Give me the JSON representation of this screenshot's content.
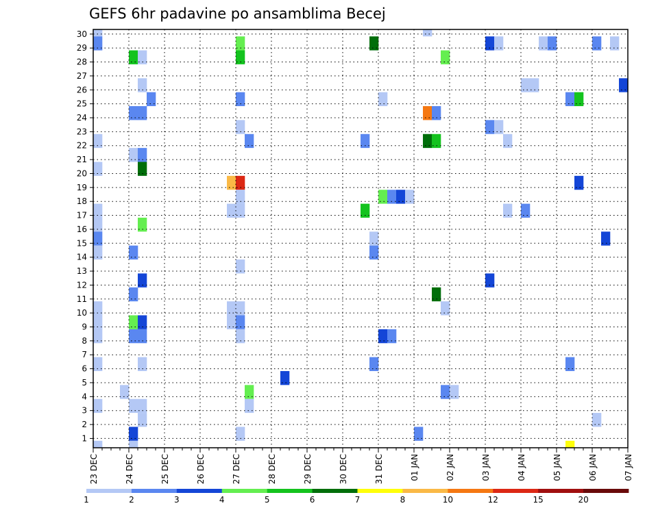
{
  "chart_data": {
    "type": "heatmap",
    "title": "GEFS 6hr padavine po ansamblima Becej",
    "x_ticks": [
      "23 DEC",
      "24 DEC",
      "25 DEC",
      "26 DEC",
      "27 DEC",
      "28 DEC",
      "29 DEC",
      "30 DEC",
      "31 DEC",
      "01 JAN",
      "02 JAN",
      "03 JAN",
      "04 JAN",
      "05 JAN",
      "06 JAN",
      "07 JAN"
    ],
    "y_ticks": [
      1,
      2,
      3,
      4,
      5,
      6,
      7,
      8,
      9,
      10,
      11,
      12,
      13,
      14,
      15,
      16,
      17,
      18,
      19,
      20,
      21,
      22,
      23,
      24,
      25,
      26,
      27,
      28,
      29,
      30
    ],
    "grid": true,
    "colorbar": {
      "levels": [
        "1",
        "2",
        "3",
        "4",
        "5",
        "6",
        "7",
        "8",
        "10",
        "12",
        "15",
        "20"
      ],
      "colors": [
        "#b4c8f5",
        "#5a87f0",
        "#1446d7",
        "#64ee50",
        "#14c31e",
        "#006e0a",
        "#ffff0a",
        "#fab946",
        "#f57812",
        "#dc2814",
        "#a00f0f",
        "#690a0a"
      ]
    },
    "x_unit": "6-hour step from 23 DEC 00Z",
    "y_unit": "ensemble member",
    "cells": [
      {
        "x": 0,
        "y": 29,
        "c": 1
      },
      {
        "x": 0,
        "y": 28,
        "c": 2
      },
      {
        "x": 0,
        "y": 21,
        "c": 1
      },
      {
        "x": 0,
        "y": 19,
        "c": 1
      },
      {
        "x": 0,
        "y": 16,
        "c": 1
      },
      {
        "x": 0,
        "y": 15,
        "c": 1
      },
      {
        "x": 0,
        "y": 14,
        "c": 2
      },
      {
        "x": 0,
        "y": 13,
        "c": 1
      },
      {
        "x": 0,
        "y": 9,
        "c": 1
      },
      {
        "x": 0,
        "y": 8,
        "c": 1
      },
      {
        "x": 0,
        "y": 7,
        "c": 1
      },
      {
        "x": 0,
        "y": 5,
        "c": 1
      },
      {
        "x": 0,
        "y": 2,
        "c": 1
      },
      {
        "x": 0,
        "y": -1,
        "c": 1
      },
      {
        "x": 4,
        "y": 27,
        "c": 5
      },
      {
        "x": 5,
        "y": 27,
        "c": 1
      },
      {
        "x": 4,
        "y": 23,
        "c": 2
      },
      {
        "x": 5,
        "y": 23,
        "c": 2
      },
      {
        "x": 5,
        "y": 25,
        "c": 1
      },
      {
        "x": 6,
        "y": 24,
        "c": 2
      },
      {
        "x": 4,
        "y": 20,
        "c": 1
      },
      {
        "x": 5,
        "y": 20,
        "c": 2
      },
      {
        "x": 5,
        "y": 19,
        "c": 6
      },
      {
        "x": 5,
        "y": 15,
        "c": 4
      },
      {
        "x": 4,
        "y": 13,
        "c": 2
      },
      {
        "x": 5,
        "y": 11,
        "c": 3
      },
      {
        "x": 4,
        "y": 10,
        "c": 2
      },
      {
        "x": 4,
        "y": 8,
        "c": 4
      },
      {
        "x": 5,
        "y": 8,
        "c": 3
      },
      {
        "x": 4,
        "y": 7,
        "c": 2
      },
      {
        "x": 5,
        "y": 7,
        "c": 2
      },
      {
        "x": 5,
        "y": 5,
        "c": 1
      },
      {
        "x": 3,
        "y": 3,
        "c": 1
      },
      {
        "x": 4,
        "y": 2,
        "c": 1
      },
      {
        "x": 5,
        "y": 2,
        "c": 1
      },
      {
        "x": 5,
        "y": 1,
        "c": 1
      },
      {
        "x": 4,
        "y": 0,
        "c": 3
      },
      {
        "x": 4,
        "y": -1,
        "c": 1
      },
      {
        "x": 16,
        "y": 28,
        "c": 4
      },
      {
        "x": 16,
        "y": 27,
        "c": 5
      },
      {
        "x": 16,
        "y": 24,
        "c": 2
      },
      {
        "x": 16,
        "y": 22,
        "c": 1
      },
      {
        "x": 17,
        "y": 21,
        "c": 2
      },
      {
        "x": 15,
        "y": 18,
        "c": 8
      },
      {
        "x": 16,
        "y": 18,
        "c": 10
      },
      {
        "x": 16,
        "y": 17,
        "c": 1
      },
      {
        "x": 15,
        "y": 16,
        "c": 1
      },
      {
        "x": 16,
        "y": 16,
        "c": 1
      },
      {
        "x": 16,
        "y": 12,
        "c": 1
      },
      {
        "x": 15,
        "y": 9,
        "c": 1
      },
      {
        "x": 16,
        "y": 9,
        "c": 1
      },
      {
        "x": 15,
        "y": 8,
        "c": 1
      },
      {
        "x": 16,
        "y": 8,
        "c": 2
      },
      {
        "x": 16,
        "y": 7,
        "c": 1
      },
      {
        "x": 17,
        "y": 3,
        "c": 4
      },
      {
        "x": 17,
        "y": 2,
        "c": 1
      },
      {
        "x": 16,
        "y": 0,
        "c": 1
      },
      {
        "x": 21,
        "y": 4,
        "c": 3
      },
      {
        "x": 31,
        "y": 28,
        "c": 6
      },
      {
        "x": 30,
        "y": 21,
        "c": 2
      },
      {
        "x": 30,
        "y": 16,
        "c": 5
      },
      {
        "x": 31,
        "y": 14,
        "c": 1
      },
      {
        "x": 31,
        "y": 13,
        "c": 2
      },
      {
        "x": 31,
        "y": 5,
        "c": 2
      },
      {
        "x": 32,
        "y": 24,
        "c": 1
      },
      {
        "x": 32,
        "y": 17,
        "c": 4
      },
      {
        "x": 33,
        "y": 17,
        "c": 2
      },
      {
        "x": 34,
        "y": 17,
        "c": 3
      },
      {
        "x": 35,
        "y": 17,
        "c": 1
      },
      {
        "x": 32,
        "y": 7,
        "c": 3
      },
      {
        "x": 33,
        "y": 7,
        "c": 2
      },
      {
        "x": 36,
        "y": 0,
        "c": 2
      },
      {
        "x": 37,
        "y": 29,
        "c": 1
      },
      {
        "x": 37,
        "y": 23,
        "c": 9
      },
      {
        "x": 38,
        "y": 23,
        "c": 2
      },
      {
        "x": 37,
        "y": 21,
        "c": 6
      },
      {
        "x": 38,
        "y": 21,
        "c": 5
      },
      {
        "x": 38,
        "y": 10,
        "c": 6
      },
      {
        "x": 39,
        "y": 27,
        "c": 4
      },
      {
        "x": 39,
        "y": 9,
        "c": 1
      },
      {
        "x": 39,
        "y": 3,
        "c": 2
      },
      {
        "x": 40,
        "y": 3,
        "c": 1
      },
      {
        "x": 44,
        "y": 28,
        "c": 3
      },
      {
        "x": 45,
        "y": 28,
        "c": 1
      },
      {
        "x": 44,
        "y": 22,
        "c": 2
      },
      {
        "x": 45,
        "y": 22,
        "c": 1
      },
      {
        "x": 46,
        "y": 21,
        "c": 1
      },
      {
        "x": 44,
        "y": 11,
        "c": 3
      },
      {
        "x": 46,
        "y": 16,
        "c": 1
      },
      {
        "x": 48,
        "y": 25,
        "c": 1
      },
      {
        "x": 49,
        "y": 25,
        "c": 1
      },
      {
        "x": 48,
        "y": 16,
        "c": 2
      },
      {
        "x": 50,
        "y": 28,
        "c": 1
      },
      {
        "x": 51,
        "y": 28,
        "c": 2
      },
      {
        "x": 53,
        "y": 24,
        "c": 2
      },
      {
        "x": 54,
        "y": 24,
        "c": 5
      },
      {
        "x": 54,
        "y": 18,
        "c": 3
      },
      {
        "x": 53,
        "y": 5,
        "c": 2
      },
      {
        "x": 53,
        "y": -1,
        "c": 7
      },
      {
        "x": 56,
        "y": 28,
        "c": 2
      },
      {
        "x": 56,
        "y": 1,
        "c": 1
      },
      {
        "x": 57,
        "y": 14,
        "c": 3
      },
      {
        "x": 58,
        "y": 28,
        "c": 1
      },
      {
        "x": 59,
        "y": 25,
        "c": 3
      }
    ]
  }
}
